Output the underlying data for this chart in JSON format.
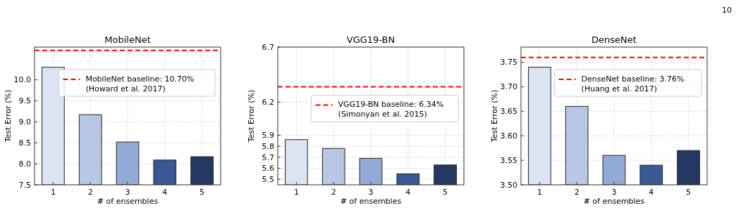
{
  "chart_data": [
    {
      "type": "bar",
      "title": "MobileNet",
      "xlabel": "# of ensembles",
      "ylabel": "Test Error (%)",
      "categories": [
        "1",
        "2",
        "3",
        "4",
        "5"
      ],
      "values": [
        10.3,
        9.17,
        8.52,
        8.09,
        8.17
      ],
      "colors": [
        "#dce3f2",
        "#b7c7e4",
        "#93aad6",
        "#3a5894",
        "#243862"
      ],
      "ylim": [
        7.5,
        10.78
      ],
      "yticks": [
        {
          "value": 7.5,
          "label": "7.5"
        },
        {
          "value": 8,
          "label": "8.0"
        },
        {
          "value": 8.5,
          "label": "8.5"
        },
        {
          "value": 9,
          "label": "9.0"
        },
        {
          "value": 9.5,
          "label": "9.5"
        },
        {
          "value": 10,
          "label": "10.0"
        }
      ],
      "grid": true,
      "legend": "top right",
      "ref_lines": [
        {
          "axis": "y",
          "value": 10.7,
          "label": "MobileNet baseline: 10.70%\n(Howard et al. 2017)",
          "color": "#ff0000",
          "line_style": "dashed"
        }
      ]
    },
    {
      "type": "bar",
      "title": "VGG19-BN",
      "xlabel": "# of ensembles",
      "ylabel": "Test Error (%)",
      "categories": [
        "1",
        "2",
        "3",
        "4",
        "5"
      ],
      "values": [
        5.86,
        5.78,
        5.69,
        5.55,
        5.63
      ],
      "colors": [
        "#dce3f2",
        "#b7c7e4",
        "#93aad6",
        "#3a5894",
        "#243862"
      ],
      "ylim": [
        5.45,
        6.7
      ],
      "yticks": [
        5.5,
        5.6,
        5.7,
        5.8,
        5.9,
        6.2,
        6.7
      ],
      "grid": true,
      "legend": "top right",
      "ref_lines": [
        {
          "axis": "y",
          "value": 6.34,
          "label": "VGG19-BN baseline: 6.34%\n(Simonyan et al. 2015)",
          "color": "#ff0000",
          "line_style": "dashed"
        }
      ]
    },
    {
      "type": "bar",
      "title": "DenseNet",
      "xlabel": "# of ensembles",
      "ylabel": "Test Error (%)",
      "categories": [
        "1",
        "2",
        "3",
        "4",
        "5"
      ],
      "values": [
        3.74,
        3.66,
        3.56,
        3.54,
        3.57
      ],
      "colors": [
        "#dce3f2",
        "#b7c7e4",
        "#93aad6",
        "#3a5894",
        "#243862"
      ],
      "ylim": [
        3.5,
        3.781
      ],
      "yticks": [
        {
          "value": 3.5,
          "label": "3.50"
        },
        {
          "value": 3.55,
          "label": "3.55"
        },
        {
          "value": 3.6,
          "label": "3.60"
        },
        {
          "value": 3.65,
          "label": "3.65"
        },
        {
          "value": 3.7,
          "label": "3.70"
        },
        {
          "value": 3.75,
          "label": "3.75"
        }
      ],
      "grid": true,
      "legend": "top right",
      "ref_lines": [
        {
          "axis": "y",
          "value": 3.76,
          "label": "DenseNet baseline: 3.76%\n(Huang et al. 2017)",
          "color": "#ff0000",
          "line_style": "dashed"
        }
      ],
      "annotations": [
        "10"
      ]
    }
  ]
}
